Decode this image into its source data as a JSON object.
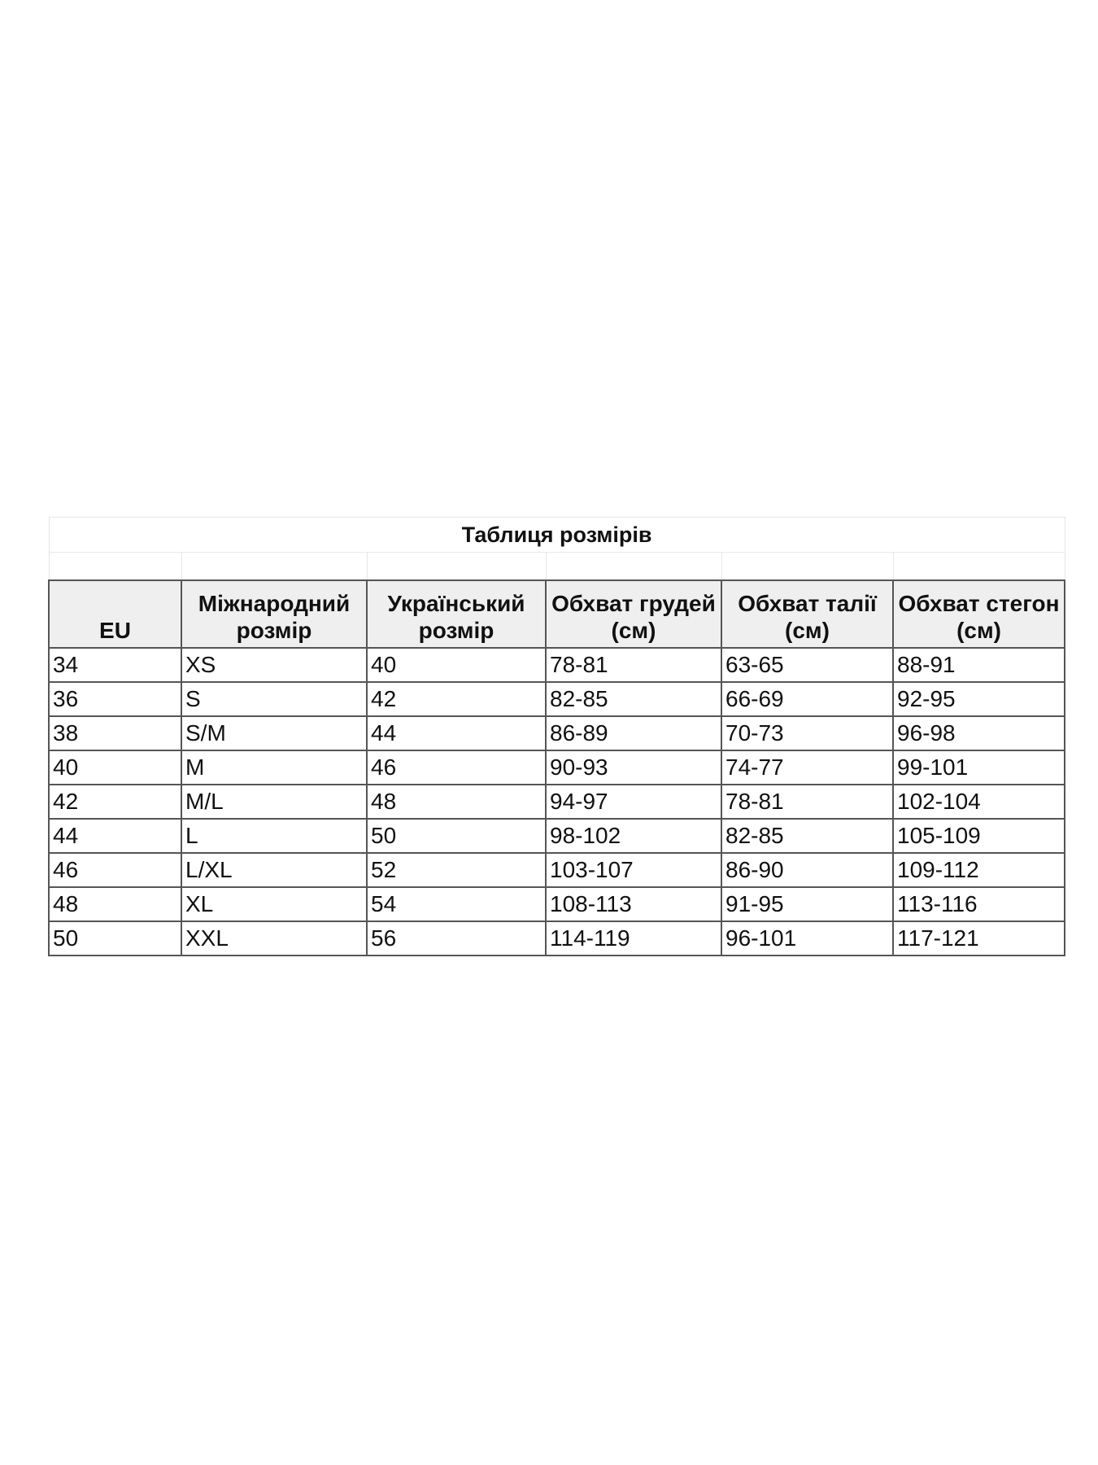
{
  "title": "Таблиця розмірів",
  "headers": [
    "EU",
    "Міжнародний розмір",
    "Український розмір",
    "Обхват грудей (см)",
    "Обхват талії (см)",
    "Обхват стегон (см)"
  ],
  "rows": [
    [
      "34",
      "XS",
      "40",
      "78-81",
      "63-65",
      "88-91"
    ],
    [
      "36",
      "S",
      "42",
      "82-85",
      "66-69",
      "92-95"
    ],
    [
      "38",
      "S/M",
      "44",
      "86-89",
      "70-73",
      "96-98"
    ],
    [
      "40",
      "M",
      "46",
      "90-93",
      "74-77",
      "99-101"
    ],
    [
      "42",
      "M/L",
      "48",
      "94-97",
      "78-81",
      "102-104"
    ],
    [
      "44",
      "L",
      "50",
      "98-102",
      "82-85",
      "105-109"
    ],
    [
      "46",
      "L/XL",
      "52",
      "103-107",
      "86-90",
      "109-112"
    ],
    [
      "48",
      "XL",
      "54",
      "108-113",
      "91-95",
      "113-116"
    ],
    [
      "50",
      "XXL",
      "56",
      "114-119",
      "96-101",
      "117-121"
    ]
  ],
  "colors": {
    "header_bg": "#efefef",
    "border": "#555555"
  }
}
